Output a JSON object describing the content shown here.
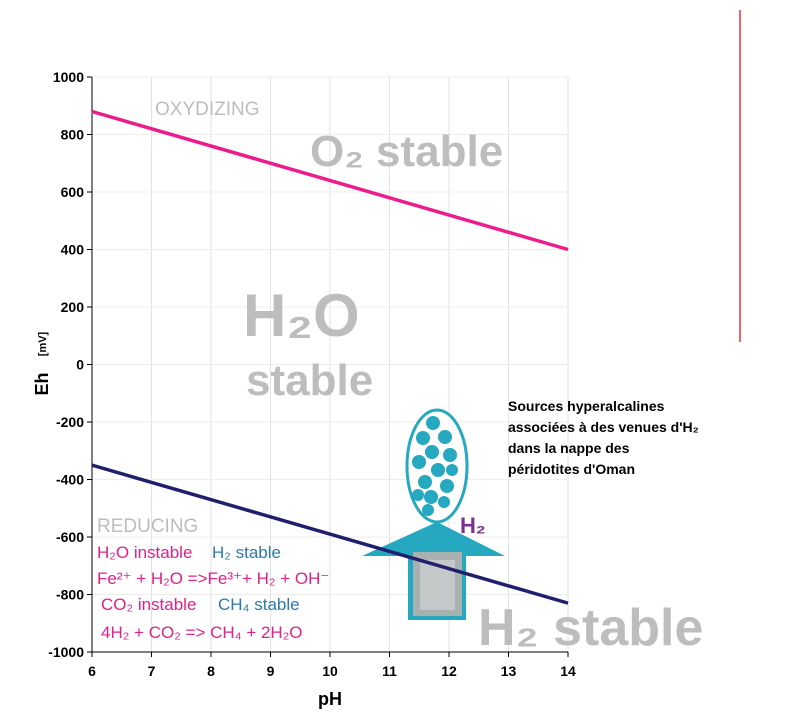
{
  "chart_data": {
    "type": "line",
    "x_label": "pH",
    "y_label": "Eh",
    "y_unit": "[mV]",
    "xlim": [
      6,
      14
    ],
    "xticks": [
      6,
      7,
      8,
      9,
      10,
      11,
      12,
      13,
      14
    ],
    "ylim": [
      -1000,
      1000
    ],
    "yticks": [
      -1000,
      -800,
      -600,
      -400,
      -200,
      0,
      200,
      400,
      600,
      800,
      1000
    ],
    "grid": true,
    "x": [
      6,
      14
    ],
    "series": [
      {
        "color": "#ec1c8c",
        "values": [
          880,
          400
        ]
      },
      {
        "color": "#1f1f6e",
        "values": [
          -350,
          -830
        ]
      }
    ],
    "annotations": [
      {
        "text": "OXYDIZING",
        "color": "#bdbdbd"
      },
      {
        "text": "O₂ stable",
        "color": "#bdbdbd"
      },
      {
        "text": "H₂O",
        "color": "#bdbdbd"
      },
      {
        "text": "stable",
        "color": "#bdbdbd"
      },
      {
        "text": "REDUCING",
        "color": "#bdbdbd"
      },
      {
        "text": "H₂O instable",
        "color": "#e0218a"
      },
      {
        "text": "H₂ stable",
        "color": "#2b7bb0"
      },
      {
        "text": "Fe²⁺ + H₂O =>Fe³⁺+ H₂ + OH⁻",
        "color": "#e0218a"
      },
      {
        "text": "CO₂ instable",
        "color": "#e0218a"
      },
      {
        "text": "CH₄ stable",
        "color": "#2b7bb0"
      },
      {
        "text": "4H₂ + CO₂ => CH₄ + 2H₂O",
        "color": "#e0218a"
      },
      {
        "text": "H₂",
        "color": "#7a2f8f"
      },
      {
        "text": "H₂ stable",
        "color": "#bdbdbd"
      }
    ],
    "note_lines": [
      "Sources hyperalcalines",
      "associées à des venues d'H₂",
      "dans la nappe des",
      "péridotites d'Oman"
    ]
  }
}
